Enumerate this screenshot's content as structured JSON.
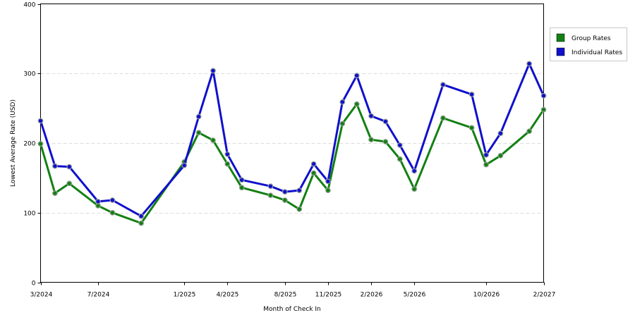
{
  "chart_data": {
    "type": "line",
    "title": "",
    "xlabel": "Month of Check In",
    "ylabel": "Lowest Average Rate (USD)",
    "ylim": [
      0,
      400
    ],
    "yticks": [
      0,
      100,
      200,
      300,
      400
    ],
    "x_months": [
      "3/2024",
      "4/2024",
      "5/2024",
      "6/2024",
      "7/2024",
      "8/2024",
      "9/2024",
      "10/2024",
      "11/2024",
      "12/2024",
      "1/2025",
      "2/2025",
      "3/2025",
      "4/2025",
      "5/2025",
      "6/2025",
      "7/2025",
      "8/2025",
      "9/2025",
      "10/2025",
      "11/2025",
      "12/2025",
      "1/2026",
      "2/2026",
      "3/2026",
      "4/2026",
      "5/2026",
      "6/2026",
      "7/2026",
      "8/2026",
      "9/2026",
      "10/2026",
      "11/2026",
      "12/2026",
      "1/2027",
      "2/2027"
    ],
    "x_tick_labels": [
      "3/2024",
      "7/2024",
      "1/2025",
      "4/2025",
      "8/2025",
      "11/2025",
      "2/2026",
      "5/2026",
      "10/2026",
      "2/2027"
    ],
    "grid": {
      "y": true,
      "x": false
    },
    "legend_position": "right",
    "series": [
      {
        "name": "Group Rates",
        "color": "#138013",
        "points": [
          {
            "x": "3/2024",
            "y": 199
          },
          {
            "x": "4/2024",
            "y": 128
          },
          {
            "x": "5/2024",
            "y": 142
          },
          {
            "x": "7/2024",
            "y": 110
          },
          {
            "x": "8/2024",
            "y": 100
          },
          {
            "x": "10/2024",
            "y": 85
          },
          {
            "x": "1/2025",
            "y": 173
          },
          {
            "x": "2/2025",
            "y": 215
          },
          {
            "x": "3/2025",
            "y": 204
          },
          {
            "x": "4/2025",
            "y": 170
          },
          {
            "x": "5/2025",
            "y": 136
          },
          {
            "x": "7/2025",
            "y": 125
          },
          {
            "x": "8/2025",
            "y": 118
          },
          {
            "x": "9/2025",
            "y": 105
          },
          {
            "x": "10/2025",
            "y": 157
          },
          {
            "x": "11/2025",
            "y": 132
          },
          {
            "x": "12/2025",
            "y": 228
          },
          {
            "x": "1/2026",
            "y": 256
          },
          {
            "x": "2/2026",
            "y": 205
          },
          {
            "x": "3/2026",
            "y": 202
          },
          {
            "x": "4/2026",
            "y": 177
          },
          {
            "x": "5/2026",
            "y": 134
          },
          {
            "x": "7/2026",
            "y": 236
          },
          {
            "x": "9/2026",
            "y": 222
          },
          {
            "x": "10/2026",
            "y": 169
          },
          {
            "x": "11/2026",
            "y": 182
          },
          {
            "x": "1/2027",
            "y": 217
          },
          {
            "x": "2/2027",
            "y": 248
          }
        ]
      },
      {
        "name": "Individual Rates",
        "color": "#1010CC",
        "points": [
          {
            "x": "3/2024",
            "y": 232
          },
          {
            "x": "4/2024",
            "y": 167
          },
          {
            "x": "5/2024",
            "y": 166
          },
          {
            "x": "7/2024",
            "y": 116
          },
          {
            "x": "8/2024",
            "y": 118
          },
          {
            "x": "10/2024",
            "y": 95
          },
          {
            "x": "1/2025",
            "y": 168
          },
          {
            "x": "2/2025",
            "y": 238
          },
          {
            "x": "3/2025",
            "y": 304
          },
          {
            "x": "4/2025",
            "y": 184
          },
          {
            "x": "5/2025",
            "y": 147
          },
          {
            "x": "7/2025",
            "y": 138
          },
          {
            "x": "8/2025",
            "y": 130
          },
          {
            "x": "9/2025",
            "y": 132
          },
          {
            "x": "10/2025",
            "y": 170
          },
          {
            "x": "11/2025",
            "y": 145
          },
          {
            "x": "12/2025",
            "y": 259
          },
          {
            "x": "1/2026",
            "y": 297
          },
          {
            "x": "2/2026",
            "y": 239
          },
          {
            "x": "3/2026",
            "y": 231
          },
          {
            "x": "4/2026",
            "y": 197
          },
          {
            "x": "5/2026",
            "y": 160
          },
          {
            "x": "7/2026",
            "y": 284
          },
          {
            "x": "9/2026",
            "y": 270
          },
          {
            "x": "10/2026",
            "y": 183
          },
          {
            "x": "11/2026",
            "y": 214
          },
          {
            "x": "1/2027",
            "y": 314
          },
          {
            "x": "2/2027",
            "y": 268
          }
        ]
      }
    ]
  }
}
